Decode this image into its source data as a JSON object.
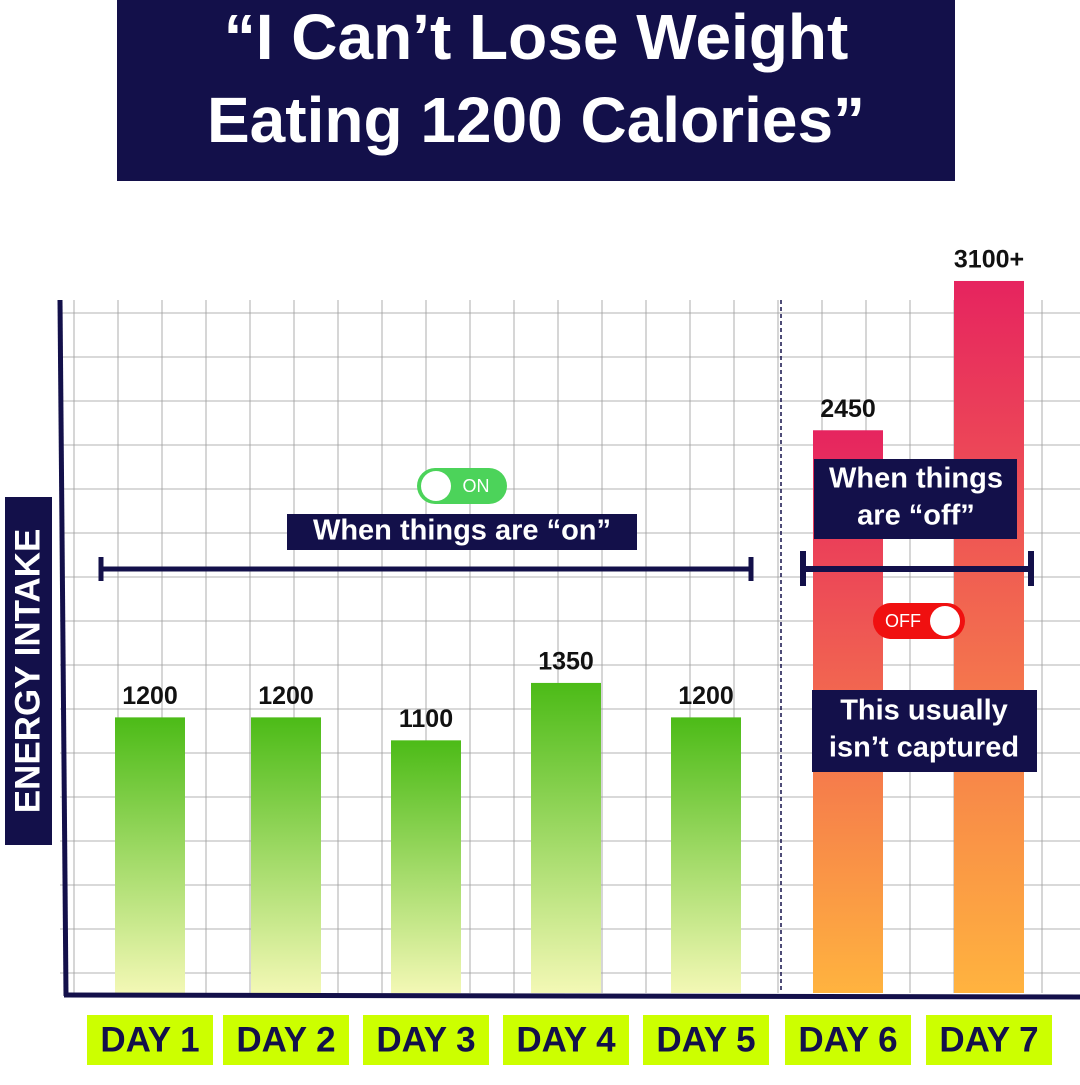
{
  "chart_data": {
    "type": "bar",
    "title_lines": [
      "“I Can’t Lose Weight",
      "Eating 1200 Calories”"
    ],
    "y_label": "ENERGY INTAKE",
    "categories": [
      "DAY 1",
      "DAY 2",
      "DAY 3",
      "DAY 4",
      "DAY 5",
      "DAY 6",
      "DAY 7"
    ],
    "values": [
      1200,
      1200,
      1100,
      1350,
      1200,
      2450,
      3100
    ],
    "value_labels": [
      "1200",
      "1200",
      "1100",
      "1350",
      "1200",
      "2450",
      "3100+"
    ],
    "bar_colors": [
      {
        "top": "#4cbb17",
        "bottom": "#f3f8b5"
      },
      {
        "top": "#4cbb17",
        "bottom": "#f3f8b5"
      },
      {
        "top": "#4cbb17",
        "bottom": "#f3f8b5"
      },
      {
        "top": "#4cbb17",
        "bottom": "#f3f8b5"
      },
      {
        "top": "#4cbb17",
        "bottom": "#f3f8b5"
      },
      {
        "top": "#e6245f",
        "bottom": "#ffb33f"
      },
      {
        "top": "#e6245f",
        "bottom": "#ffb33f"
      }
    ],
    "ylim": [
      0,
      3200
    ],
    "grid": true,
    "annotations": {
      "on_toggle": "ON",
      "on_caption": [
        "When things are “on”"
      ],
      "off_toggle": "OFF",
      "off_caption": [
        "When things",
        "are “off”"
      ],
      "note": [
        "This usually",
        "isn’t captured"
      ]
    }
  }
}
